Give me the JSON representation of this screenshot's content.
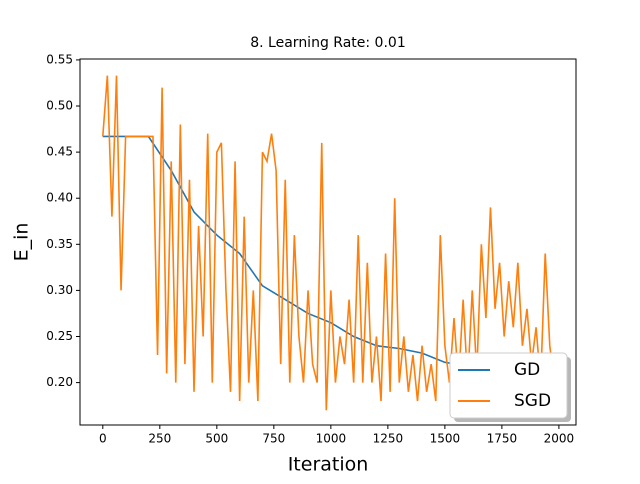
{
  "chart_data": {
    "type": "line",
    "title": "8. Learning Rate: 0.01",
    "x_label": "Iteration",
    "y_label": "E_in",
    "xlim": [
      -100,
      2075
    ],
    "ylim": [
      0.154,
      0.551
    ],
    "xticks": [
      0,
      250,
      500,
      750,
      1000,
      1250,
      1500,
      1750,
      2000
    ],
    "yticks": [
      {
        "value": 0.2,
        "label": "0.20"
      },
      0.25,
      {
        "value": 0.3,
        "label": "0.30"
      },
      0.35,
      {
        "value": 0.4,
        "label": "0.40"
      },
      0.45,
      {
        "value": 0.5,
        "label": "0.50"
      },
      0.55
    ],
    "legend": "lower right",
    "series": [
      {
        "name": "GD",
        "color": "#1f77b4",
        "x": [
          0,
          100,
          200,
          300,
          400,
          500,
          600,
          700,
          800,
          900,
          1000,
          1100,
          1200,
          1300,
          1400,
          1500,
          1600,
          1700,
          1800,
          1900,
          1990
        ],
        "values": [
          0.467,
          0.467,
          0.467,
          0.43,
          0.385,
          0.36,
          0.34,
          0.305,
          0.29,
          0.275,
          0.265,
          0.25,
          0.24,
          0.237,
          0.232,
          0.222,
          0.218,
          0.215,
          0.212,
          0.208,
          0.205
        ]
      },
      {
        "name": "SGD",
        "color": "#ff7f0e",
        "x": [
          0,
          20,
          40,
          60,
          80,
          100,
          120,
          140,
          160,
          180,
          200,
          220,
          240,
          260,
          280,
          300,
          320,
          340,
          360,
          380,
          400,
          420,
          440,
          460,
          480,
          500,
          520,
          540,
          560,
          580,
          600,
          620,
          640,
          660,
          680,
          700,
          720,
          740,
          760,
          780,
          800,
          820,
          840,
          860,
          880,
          900,
          920,
          940,
          960,
          980,
          1000,
          1020,
          1040,
          1060,
          1080,
          1100,
          1120,
          1140,
          1160,
          1180,
          1200,
          1220,
          1240,
          1260,
          1280,
          1300,
          1320,
          1340,
          1360,
          1380,
          1400,
          1420,
          1440,
          1460,
          1480,
          1500,
          1520,
          1540,
          1560,
          1580,
          1600,
          1620,
          1640,
          1660,
          1680,
          1700,
          1720,
          1740,
          1760,
          1780,
          1800,
          1820,
          1840,
          1860,
          1880,
          1900,
          1920,
          1940,
          1960,
          1980
        ],
        "values": [
          0.467,
          0.533,
          0.38,
          0.533,
          0.3,
          0.467,
          0.467,
          0.467,
          0.467,
          0.467,
          0.467,
          0.467,
          0.23,
          0.52,
          0.21,
          0.44,
          0.2,
          0.48,
          0.22,
          0.42,
          0.19,
          0.37,
          0.25,
          0.47,
          0.2,
          0.45,
          0.46,
          0.3,
          0.19,
          0.44,
          0.18,
          0.38,
          0.2,
          0.3,
          0.18,
          0.45,
          0.44,
          0.47,
          0.43,
          0.22,
          0.42,
          0.2,
          0.36,
          0.25,
          0.2,
          0.3,
          0.22,
          0.2,
          0.46,
          0.17,
          0.3,
          0.2,
          0.25,
          0.22,
          0.29,
          0.2,
          0.36,
          0.2,
          0.33,
          0.2,
          0.25,
          0.18,
          0.34,
          0.19,
          0.4,
          0.2,
          0.25,
          0.19,
          0.23,
          0.18,
          0.24,
          0.19,
          0.22,
          0.18,
          0.36,
          0.24,
          0.2,
          0.27,
          0.2,
          0.29,
          0.2,
          0.3,
          0.21,
          0.35,
          0.27,
          0.39,
          0.28,
          0.33,
          0.25,
          0.31,
          0.26,
          0.33,
          0.24,
          0.28,
          0.22,
          0.26,
          0.2,
          0.34,
          0.24,
          0.2
        ]
      }
    ]
  }
}
